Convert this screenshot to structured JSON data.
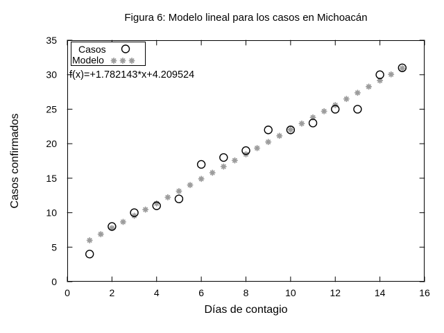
{
  "chart_data": {
    "type": "scatter",
    "title": "Figura 6: Modelo lineal para los casos en Michoacán",
    "xlabel": "Días de contagio",
    "ylabel": "Casos confirmados",
    "xlim": [
      0,
      16
    ],
    "ylim": [
      0,
      35
    ],
    "xticks": [
      0,
      2,
      4,
      6,
      8,
      10,
      12,
      14,
      16
    ],
    "yticks": [
      0,
      5,
      10,
      15,
      20,
      25,
      30,
      35
    ],
    "grid": false,
    "legend_position": "top-left",
    "annotation": "f(x)=+1.782143*x+4.209524",
    "colors": {
      "casos": "#000000",
      "modelo": "#9c9c9c",
      "border": "#000000",
      "background": "#ffffff"
    },
    "series": [
      {
        "name": "Casos",
        "marker": "circle",
        "color": "#000000",
        "x": [
          1,
          2,
          3,
          4,
          5,
          6,
          7,
          8,
          9,
          10,
          11,
          12,
          13,
          14,
          15
        ],
        "y": [
          4,
          8,
          10,
          11,
          12,
          17,
          18,
          19,
          22,
          22,
          23,
          25,
          25,
          30,
          31
        ]
      },
      {
        "name": "Modelo",
        "marker": "asterisk",
        "color": "#9c9c9c",
        "model": {
          "slope": 1.782143,
          "intercept": 4.209524,
          "x_start": 1,
          "x_end": 15,
          "x_step": 0.5
        }
      }
    ]
  }
}
